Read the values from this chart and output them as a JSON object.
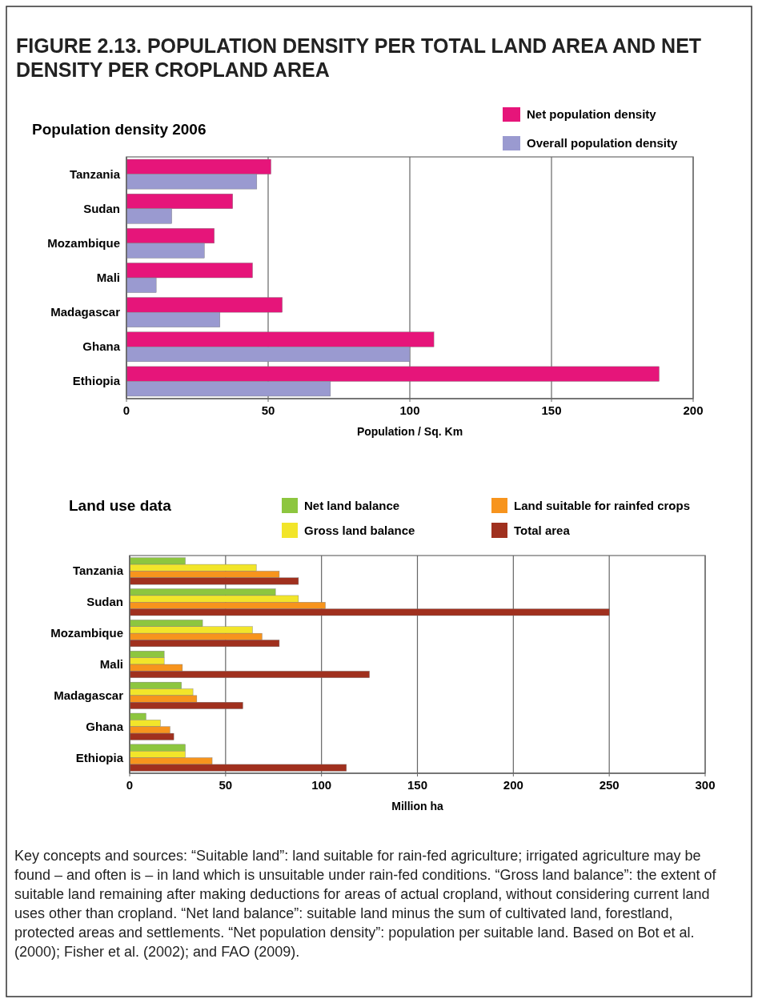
{
  "chart_data": [
    {
      "type": "bar",
      "orientation": "horizontal",
      "title": "FIGURE 2.13. POPULATION DENSITY PER TOTAL LAND AREA AND NET DENSITY PER CROPLAND AREA",
      "subtitle": "Population density 2006",
      "xlabel": "Population / Sq. Km",
      "categories": [
        "Tanzania",
        "Sudan",
        "Mozambique",
        "Mali",
        "Madagascar",
        "Ghana",
        "Ethiopia"
      ],
      "series": [
        {
          "name": "Net population density",
          "color": "#e6157a",
          "values": [
            51,
            37.5,
            31,
            44.5,
            55,
            108.5,
            188
          ]
        },
        {
          "name": "Overall population density",
          "color": "#9a9ad0",
          "values": [
            46,
            16,
            27.5,
            10.5,
            33,
            100,
            72
          ]
        }
      ],
      "xlim": [
        0,
        200
      ],
      "xticks": [
        0,
        50,
        100,
        150,
        200
      ],
      "grid": "x",
      "legend": "top right"
    },
    {
      "type": "bar",
      "orientation": "horizontal",
      "title": "Land use data",
      "xlabel": "Million ha",
      "categories": [
        "Tanzania",
        "Sudan",
        "Mozambique",
        "Mali",
        "Madagascar",
        "Ghana",
        "Ethiopia"
      ],
      "series": [
        {
          "name": "Net land balance",
          "color": "#8dc63f",
          "values": [
            29,
            76,
            38,
            18,
            27,
            8.5,
            29
          ]
        },
        {
          "name": "Gross land balance",
          "color": "#f2e52a",
          "values": [
            66,
            88,
            64,
            18,
            33,
            16,
            29
          ]
        },
        {
          "name": "Land suitable for rainfed crops",
          "color": "#f7941d",
          "values": [
            78,
            102,
            69,
            27.5,
            35,
            21,
            43
          ]
        },
        {
          "name": "Total area",
          "color": "#a0301e",
          "values": [
            88,
            250,
            78,
            125,
            59,
            23,
            113
          ]
        }
      ],
      "xlim": [
        0,
        300
      ],
      "xticks": [
        0,
        50,
        100,
        150,
        200,
        250,
        300
      ],
      "grid": "x",
      "legend": "top",
      "annotations": [
        "Key concepts and sources: “Suitable land”: land suitable for rain-fed agriculture; irrigated agriculture may be found – and often is – in land which is unsuitable under rain-fed conditions. “Gross land balance”: the extent of suitable land remaining after making deductions for areas of actual cropland, without considering current land uses other than cropland. “Net land balance”: suitable land minus the sum of cultivated land, forestland, protected areas and settlements. “Net population density”: population per suitable land. Based on Bot et al. (2000); Fisher et al. (2002); and FAO (2009)."
      ]
    }
  ]
}
